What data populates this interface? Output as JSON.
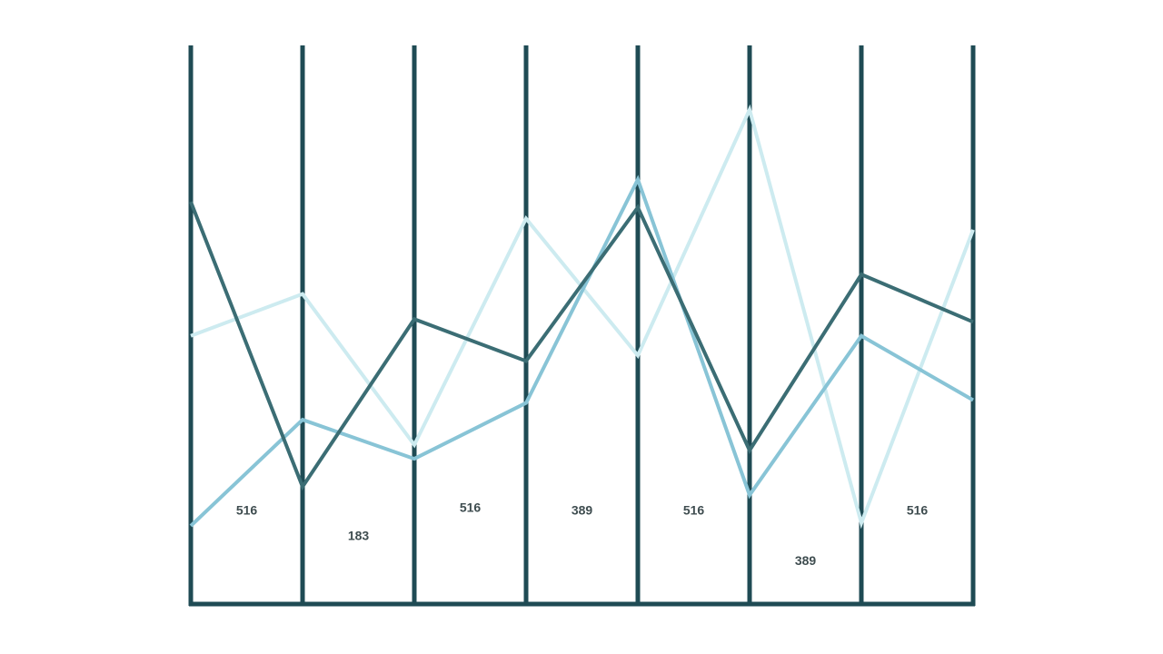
{
  "chart_data": {
    "type": "line",
    "x": [
      1,
      2,
      3,
      4,
      5,
      6,
      7,
      8
    ],
    "ylim": [
      0,
      100
    ],
    "grid": false,
    "legend": "none",
    "series": [
      {
        "color": "#3b6d74",
        "values": [
          72,
          21,
          51,
          43.5,
          71,
          27.5,
          59,
          50.5
        ]
      },
      {
        "color": "#88c4d6",
        "values": [
          14,
          33,
          26,
          36,
          76,
          19.5,
          48,
          36.5
        ]
      },
      {
        "color": "#cdebf0",
        "values": [
          48,
          55.5,
          28.5,
          69,
          44.5,
          88.5,
          14.5,
          67
        ]
      }
    ],
    "value_labels": [
      {
        "text": "516",
        "y": 16
      },
      {
        "text": "183",
        "y": 11.5
      },
      {
        "text": "516",
        "y": 16.5
      },
      {
        "text": "389",
        "y": 16
      },
      {
        "text": "516",
        "y": 16
      },
      {
        "text": "389",
        "y": 7
      },
      {
        "text": "516",
        "y": 16
      }
    ],
    "axis_color": "#1f4b54"
  }
}
